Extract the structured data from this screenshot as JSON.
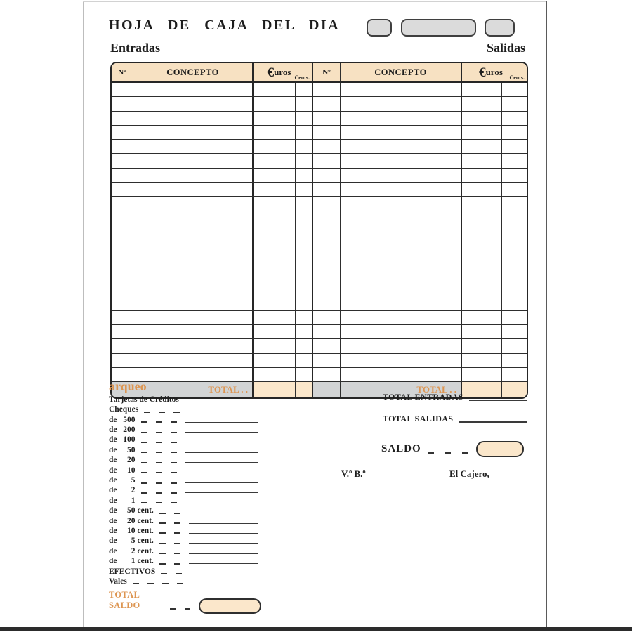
{
  "title": "HOJA DE CAJA DEL DIA",
  "sections": {
    "entradas": "Entradas",
    "salidas": "Salidas"
  },
  "table": {
    "num_header": "Nº",
    "concepto_header": "CONCEPTO",
    "euros_symbol": "€",
    "euros_rest": "uros",
    "cents_header": "Cents.",
    "body_rows": 21,
    "total_label": "TOTAL . ."
  },
  "arqueo": {
    "heading": "arqueo",
    "rows": [
      {
        "l1": "Tarjetas de Créditos",
        "l2": "",
        "l3": "",
        "dashes": 0
      },
      {
        "l1": "Cheques",
        "l2": "",
        "l3": "",
        "dashes": 3
      },
      {
        "l1": "de",
        "l2": "500",
        "l3": "",
        "dashes": 3
      },
      {
        "l1": "de",
        "l2": "200",
        "l3": "",
        "dashes": 3
      },
      {
        "l1": "de",
        "l2": "100",
        "l3": "",
        "dashes": 3
      },
      {
        "l1": "de",
        "l2": "50",
        "l3": "",
        "dashes": 3
      },
      {
        "l1": "de",
        "l2": "20",
        "l3": "",
        "dashes": 3
      },
      {
        "l1": "de",
        "l2": "10",
        "l3": "",
        "dashes": 3
      },
      {
        "l1": "de",
        "l2": "5",
        "l3": "",
        "dashes": 3
      },
      {
        "l1": "de",
        "l2": "2",
        "l3": "",
        "dashes": 3
      },
      {
        "l1": "de",
        "l2": "1",
        "l3": "",
        "dashes": 3
      },
      {
        "l1": "de",
        "l2": "50",
        "l3": "cent.",
        "dashes": 2
      },
      {
        "l1": "de",
        "l2": "20",
        "l3": "cent.",
        "dashes": 2
      },
      {
        "l1": "de",
        "l2": "10",
        "l3": "cent.",
        "dashes": 2
      },
      {
        "l1": "de",
        "l2": "5",
        "l3": "cent.",
        "dashes": 2
      },
      {
        "l1": "de",
        "l2": "2",
        "l3": "cent.",
        "dashes": 2
      },
      {
        "l1": "de",
        "l2": "1",
        "l3": "cent.",
        "dashes": 2
      },
      {
        "l1": "EFECTIVOS",
        "l2": "",
        "l3": "",
        "dashes": 2
      },
      {
        "l1": "Vales",
        "l2": "",
        "l3": "",
        "dashes": 4
      }
    ],
    "total_saldo_label": "TOTAL SALDO",
    "total_saldo_dashes": 2
  },
  "summary": {
    "total_entradas_label": "TOTAL ENTRADAS",
    "total_salidas_label": "TOTAL SALIDAS",
    "saldo_label": "SALDO",
    "saldo_dashes": 3,
    "vb_label": "V.º B.º",
    "cajero_label": "El Cajero,"
  },
  "colors": {
    "cream_header": "#f7e1c2",
    "cream_cell": "#fbe7cb",
    "gray_total": "#d2d4d5",
    "gray_field": "#dbdbdb",
    "orange": "#dd9551",
    "ink": "#1d1d1d"
  }
}
